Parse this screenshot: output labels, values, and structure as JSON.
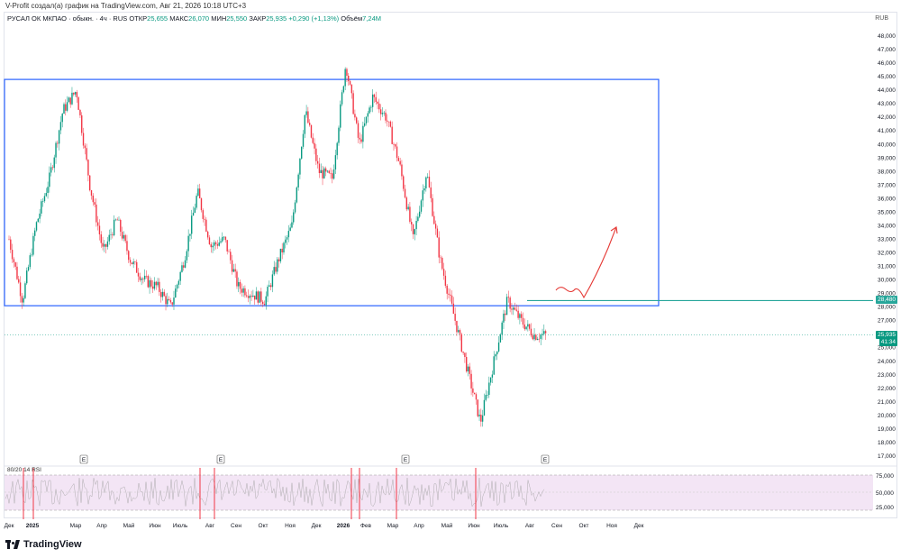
{
  "header": {
    "credit": "V-Profit создал(а) график на TradingView.com, Авг 21, 2026 10:18 UTC+3"
  },
  "symbol": {
    "name": "РУСАЛ ОК МКПАО · обыкн. · 4ч · RUS",
    "open_label": "ОТКР",
    "open": "25,655",
    "high_label": "МАКС",
    "high": "26,070",
    "low_label": "МИН",
    "low": "25,550",
    "close_label": "ЗАКР",
    "close": "25,935",
    "change": "+0,290 (+1,13%)",
    "volume_label": "Объём",
    "volume": "7,24M"
  },
  "currency": "RUB",
  "price_tags": {
    "level": "28,480",
    "last": "25,935",
    "countdown": "41:34"
  },
  "rsi": {
    "label": "80/20 14 RSI",
    "ticks": [
      "75,000",
      "50,000",
      "25,000"
    ]
  },
  "event_marker": "E",
  "logo_text": "TradingView",
  "colors": {
    "up": "#089981",
    "down": "#f23645",
    "box": "#2962ff",
    "level": "#26a69a",
    "arrow": "#e53935",
    "rsi_fill": "#f3e5f5"
  },
  "chart_data": {
    "type": "line",
    "title": "РУСАЛ ОК МКПАО · обыкн. · 4ч · RUS",
    "ylim": [
      17000,
      48000
    ],
    "y_ticks": [
      "48,000",
      "47,000",
      "46,000",
      "45,000",
      "44,000",
      "43,000",
      "42,000",
      "41,000",
      "40,000",
      "39,000",
      "38,000",
      "37,000",
      "36,000",
      "35,000",
      "34,000",
      "33,000",
      "32,000",
      "31,000",
      "30,000",
      "29,000",
      "28,000",
      "27,000",
      "26,000",
      "25,000",
      "24,000",
      "23,000",
      "22,000",
      "21,000",
      "20,000",
      "19,000",
      "18,000",
      "17,000"
    ],
    "x_ticks": [
      "Дек",
      "2025",
      "Мар",
      "Апр",
      "Май",
      "Июн",
      "Июль",
      "Авг",
      "Сен",
      "Окт",
      "Ноя",
      "Дек",
      "2026",
      "Фев",
      "Мар",
      "Апр",
      "Май",
      "Июн",
      "Июль",
      "Авг",
      "Сен",
      "Окт",
      "Ноя",
      "Дек"
    ],
    "price_path_months": [
      0,
      0.5,
      1,
      1.5,
      2,
      2.5,
      3,
      3.5,
      4,
      4.5,
      5,
      5.5,
      6,
      6.5,
      7,
      7.5,
      8,
      8.5,
      9,
      9.5,
      10,
      10.5,
      11,
      11.5,
      12,
      12.5,
      13,
      13.5,
      14,
      14.5,
      15,
      15.5,
      16,
      16.5,
      17,
      17.5,
      18,
      18.5,
      19,
      19.5,
      20,
      20.5
    ],
    "price_path_values": [
      33000,
      28500,
      34000,
      37500,
      42500,
      44000,
      37000,
      32000,
      34500,
      31500,
      30000,
      29500,
      28000,
      31500,
      36500,
      32500,
      33000,
      29500,
      29000,
      28500,
      31500,
      34000,
      42500,
      38000,
      37500,
      46000,
      40000,
      43500,
      42000,
      38500,
      33000,
      38000,
      31500,
      27500,
      23500,
      19500,
      24000,
      28500,
      27000,
      25935,
      25935,
      25935
    ],
    "box": {
      "top": 44800,
      "bottom": 28100
    },
    "level": 28480,
    "last": 25935
  }
}
